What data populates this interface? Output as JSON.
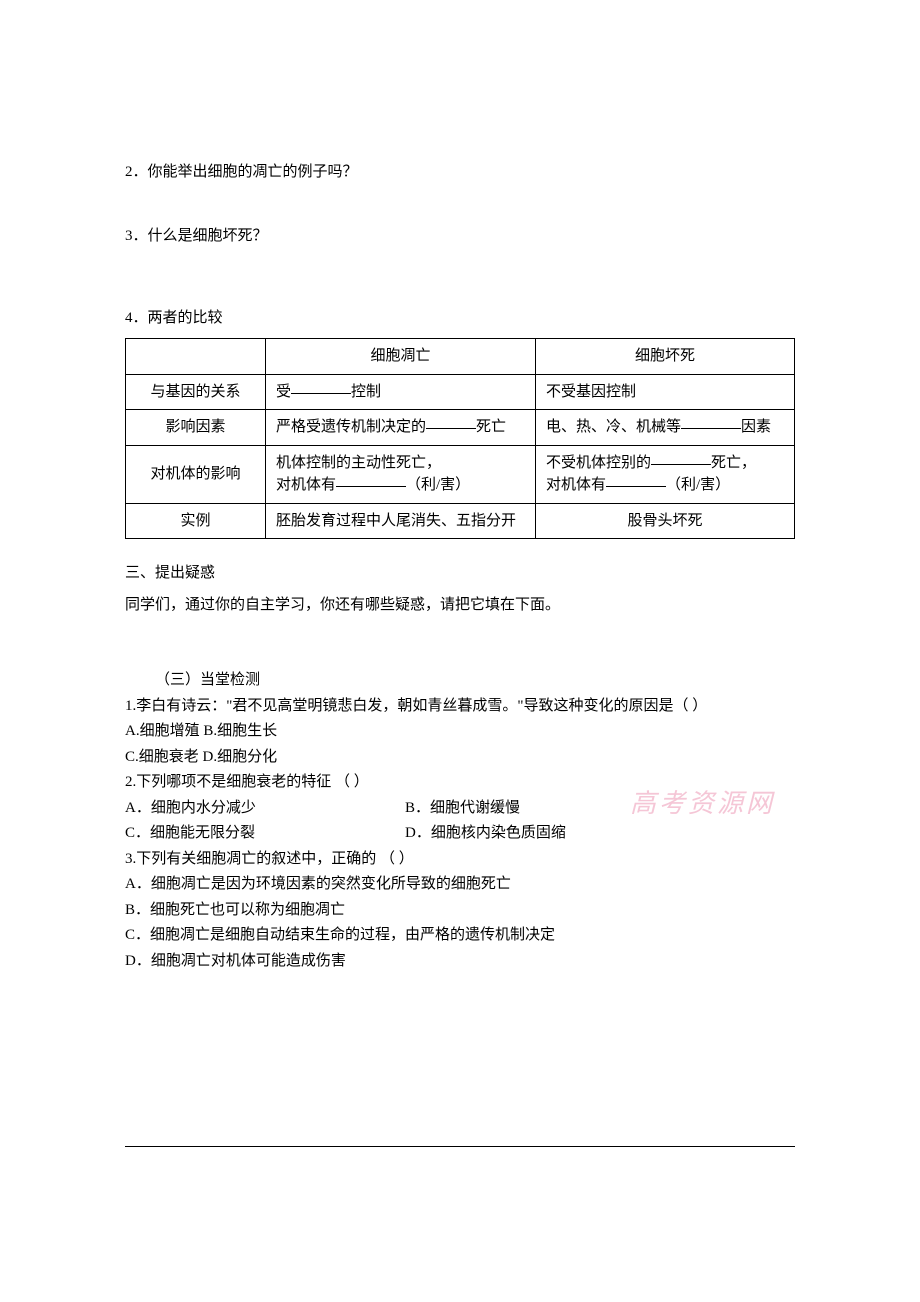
{
  "questions": {
    "q2": "2．你能举出细胞的凋亡的例子吗？",
    "q3": "3．什么是细胞坏死？",
    "q4_title": "4．两者的比较"
  },
  "table": {
    "headers": {
      "blank": "",
      "col1": "细胞凋亡",
      "col2": "细胞坏死"
    },
    "rows": {
      "r1": {
        "label": "与基因的关系",
        "c1_prefix": "受",
        "c1_suffix": "控制",
        "c2": "不受基因控制"
      },
      "r2": {
        "label": "影响因素",
        "c1_prefix": "严格受遗传机制决定的",
        "c1_suffix": "死亡",
        "c2_prefix": "电、热、冷、机械等",
        "c2_suffix": "因素"
      },
      "r3": {
        "label": "对机体的影响",
        "c1_line1": "机体控制的主动性死亡，",
        "c1_line2_prefix": "对机体有",
        "c1_line2_suffix": "（利/害）",
        "c2_line1_prefix": "不受机体控别的",
        "c2_line1_suffix": "死亡，",
        "c2_line2_prefix": "对机体有",
        "c2_line2_suffix": "（利/害）"
      },
      "r4": {
        "label": "实例",
        "c1": "胚胎发育过程中人尾消失、五指分开",
        "c2": "股骨头坏死"
      }
    }
  },
  "section3": {
    "heading": "三、提出疑惑",
    "text": "同学们，通过你的自主学习，你还有哪些疑惑，请把它填在下面。"
  },
  "quiz": {
    "heading": "（三）当堂检测",
    "q1": {
      "stem": "1.李白有诗云：\"君不见高堂明镜悲白发，朝如青丝暮成雪。\"导致这种变化的原因是（    ）",
      "line2": "A.细胞增殖   B.细胞生长",
      "line3": "C.细胞衰老      D.细胞分化"
    },
    "q2": {
      "stem": "2.下列哪项不是细胞衰老的特征 （      ）",
      "optA": "A．细胞内水分减少",
      "optB": "B．细胞代谢缓慢",
      "optC": "C．细胞能无限分裂",
      "optD": "D．细胞核内染色质固缩"
    },
    "q3": {
      "stem": "3.下列有关细胞凋亡的叙述中，正确的     （      ）",
      "optA": "A．细胞凋亡是因为环境因素的突然变化所导致的细胞死亡",
      "optB": "B．细胞死亡也可以称为细胞凋亡",
      "optC": "C．细胞凋亡是细胞自动结束生命的过程，由严格的遗传机制决定",
      "optD": "D．细胞凋亡对机体可能造成伤害"
    }
  },
  "watermark": "高考资源网"
}
